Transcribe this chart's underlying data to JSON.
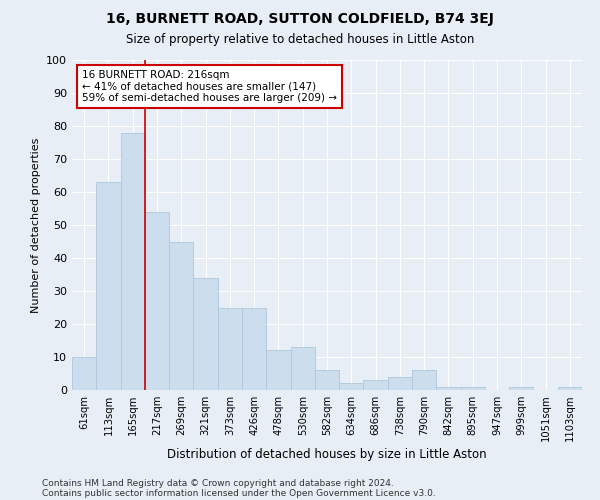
{
  "title": "16, BURNETT ROAD, SUTTON COLDFIELD, B74 3EJ",
  "subtitle": "Size of property relative to detached houses in Little Aston",
  "xlabel": "Distribution of detached houses by size in Little Aston",
  "ylabel": "Number of detached properties",
  "bar_labels": [
    "61sqm",
    "113sqm",
    "165sqm",
    "217sqm",
    "269sqm",
    "321sqm",
    "373sqm",
    "426sqm",
    "478sqm",
    "530sqm",
    "582sqm",
    "634sqm",
    "686sqm",
    "738sqm",
    "790sqm",
    "842sqm",
    "895sqm",
    "947sqm",
    "999sqm",
    "1051sqm",
    "1103sqm"
  ],
  "bar_values": [
    10,
    63,
    78,
    54,
    45,
    34,
    25,
    25,
    12,
    13,
    6,
    2,
    3,
    4,
    6,
    1,
    1,
    0,
    1,
    0,
    1
  ],
  "bar_color": "#ccdded",
  "bar_edgecolor": "#aec8dc",
  "background_color": "#e8eef5",
  "grid_color": "#ffffff",
  "ylim": [
    0,
    100
  ],
  "yticks": [
    0,
    10,
    20,
    30,
    40,
    50,
    60,
    70,
    80,
    90,
    100
  ],
  "property_line_x": 3,
  "property_line_label": "16 BURNETT ROAD: 216sqm",
  "annotation_smaller": "← 41% of detached houses are smaller (147)",
  "annotation_larger": "59% of semi-detached houses are larger (209) →",
  "box_color": "#ffffff",
  "box_edgecolor": "#cc0000",
  "footer1": "Contains HM Land Registry data © Crown copyright and database right 2024.",
  "footer2": "Contains public sector information licensed under the Open Government Licence v3.0."
}
